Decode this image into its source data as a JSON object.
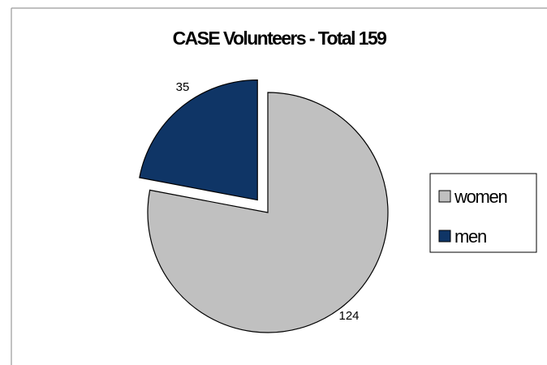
{
  "chart_data": {
    "type": "pie",
    "title": "CASE Volunteers - Total 159",
    "categories": [
      "women",
      "men"
    ],
    "values": [
      124,
      35
    ],
    "colors": [
      "#c0c0c0",
      "#0f3566"
    ],
    "exploded": [
      "men"
    ],
    "start": "12 o'clock, clockwise",
    "legend_position": "right",
    "data_labels": [
      "124",
      "35"
    ]
  }
}
